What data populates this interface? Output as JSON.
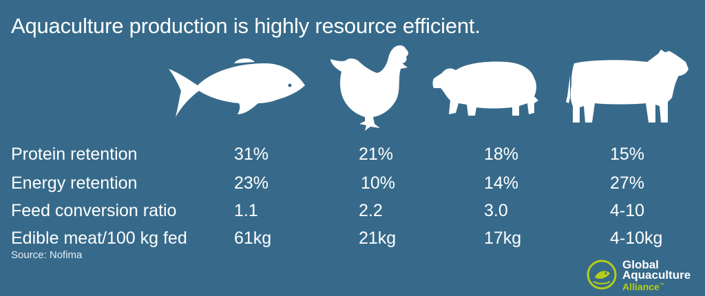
{
  "title": "Aquaculture production is highly resource efficient.",
  "animals": [
    {
      "icon": "fish-icon"
    },
    {
      "icon": "chicken-icon"
    },
    {
      "icon": "pig-icon"
    },
    {
      "icon": "cow-icon"
    }
  ],
  "rows": [
    {
      "label": "Protein retention",
      "values": [
        "31%",
        "21%",
        "18%",
        "15%"
      ]
    },
    {
      "label": "Energy retention",
      "values": [
        "23%",
        "10%",
        "14%",
        "27%"
      ]
    },
    {
      "label": "Feed conversion ratio",
      "values": [
        "1.1",
        "2.2",
        "3.0",
        "4-10"
      ]
    },
    {
      "label": "Edible meat/100 kg fed",
      "values": [
        "61kg",
        "21kg",
        "17kg",
        "4-10kg"
      ]
    }
  ],
  "source": "Source: Nofima",
  "logo": {
    "line1": "Global",
    "line2": "Aquaculture",
    "line3": "Alliance",
    "mark": "™",
    "icon": "globe-fish-icon",
    "accent": "#b5cc1b"
  },
  "colors": {
    "background": "#376a8a",
    "text": "#ffffff"
  }
}
